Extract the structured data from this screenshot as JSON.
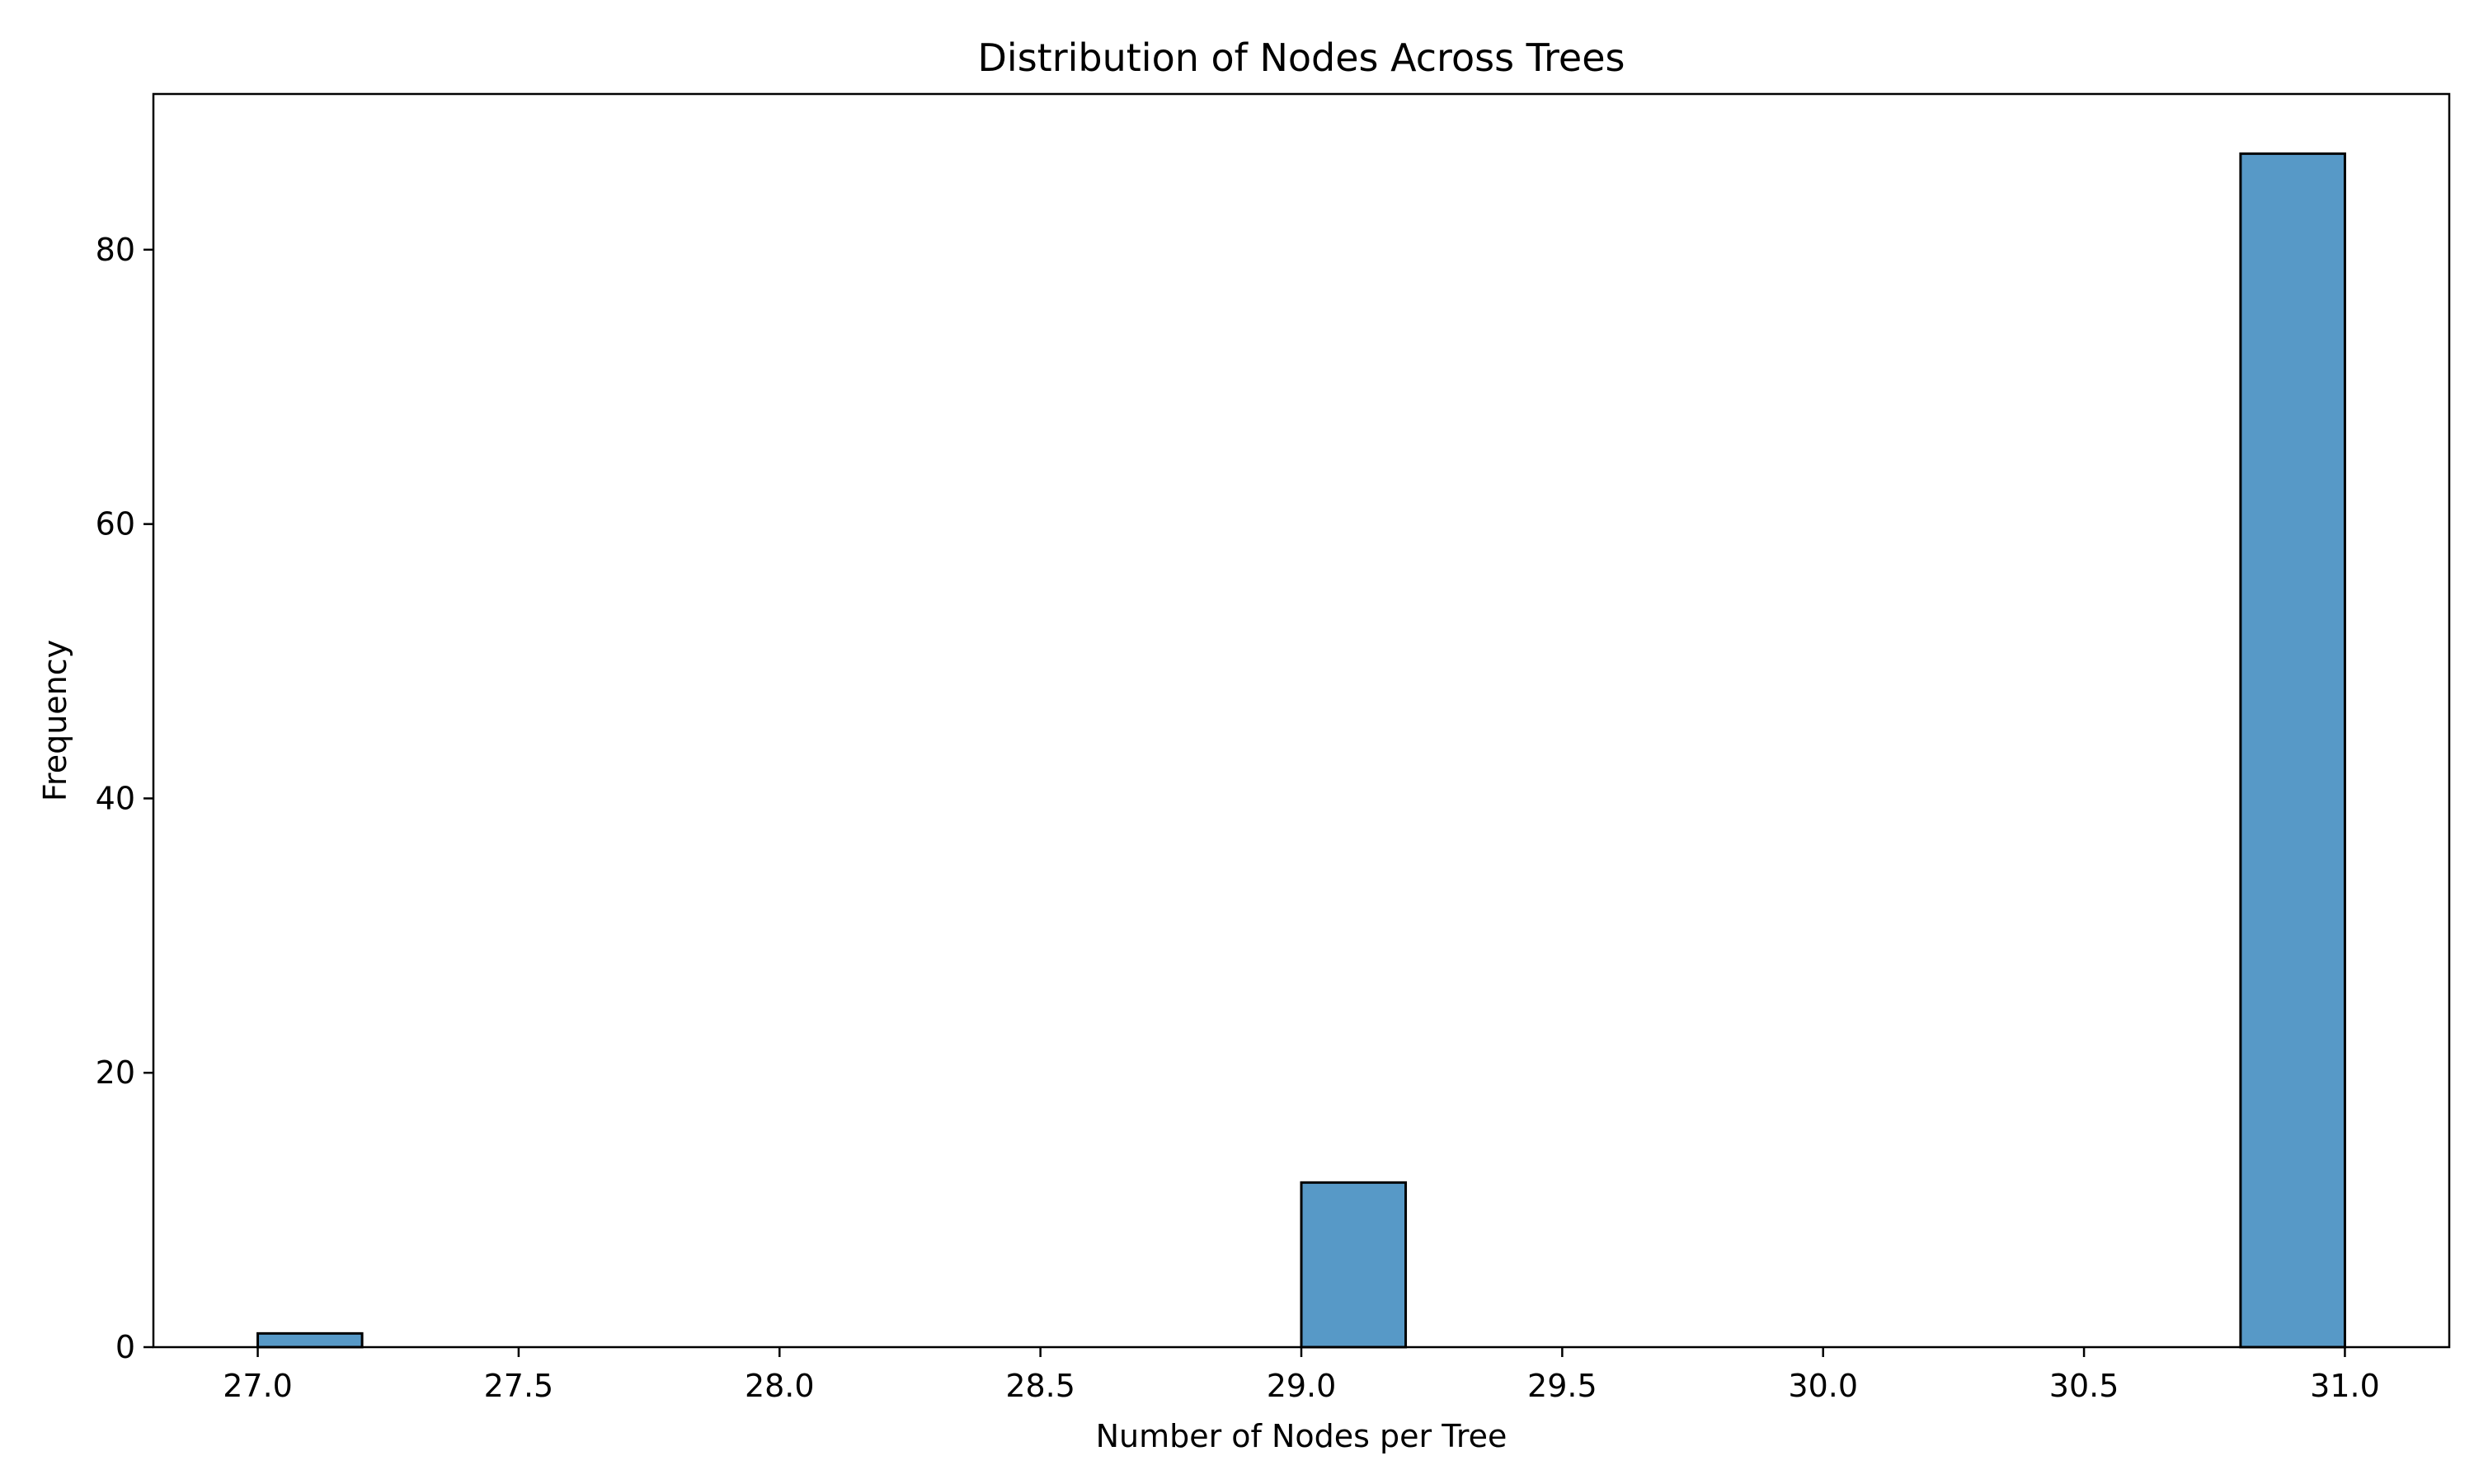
{
  "chart_data": {
    "type": "bar",
    "title": "Distribution of Nodes Across Trees",
    "xlabel": "Number of Nodes per Tree",
    "ylabel": "Frequency",
    "bin_width": 0.2,
    "bins": [
      {
        "start": 27.0,
        "end": 27.2,
        "count": 1
      },
      {
        "start": 27.2,
        "end": 27.4,
        "count": 0
      },
      {
        "start": 27.4,
        "end": 27.6,
        "count": 0
      },
      {
        "start": 27.6,
        "end": 27.8,
        "count": 0
      },
      {
        "start": 27.8,
        "end": 28.0,
        "count": 0
      },
      {
        "start": 28.0,
        "end": 28.2,
        "count": 0
      },
      {
        "start": 28.2,
        "end": 28.4,
        "count": 0
      },
      {
        "start": 28.4,
        "end": 28.6,
        "count": 0
      },
      {
        "start": 28.6,
        "end": 28.8,
        "count": 0
      },
      {
        "start": 28.8,
        "end": 29.0,
        "count": 0
      },
      {
        "start": 29.0,
        "end": 29.2,
        "count": 12
      },
      {
        "start": 29.2,
        "end": 29.4,
        "count": 0
      },
      {
        "start": 29.4,
        "end": 29.6,
        "count": 0
      },
      {
        "start": 29.6,
        "end": 29.8,
        "count": 0
      },
      {
        "start": 29.8,
        "end": 30.0,
        "count": 0
      },
      {
        "start": 30.0,
        "end": 30.2,
        "count": 0
      },
      {
        "start": 30.2,
        "end": 30.4,
        "count": 0
      },
      {
        "start": 30.4,
        "end": 30.6,
        "count": 0
      },
      {
        "start": 30.6,
        "end": 30.8,
        "count": 0
      },
      {
        "start": 30.8,
        "end": 31.0,
        "count": 87
      }
    ],
    "xlim": [
      26.8,
      31.2
    ],
    "ylim": [
      0,
      91.35
    ],
    "xticks": [
      27.0,
      27.5,
      28.0,
      28.5,
      29.0,
      29.5,
      30.0,
      30.5,
      31.0
    ],
    "xtick_labels": [
      "27.0",
      "27.5",
      "28.0",
      "28.5",
      "29.0",
      "29.5",
      "30.0",
      "30.5",
      "31.0"
    ],
    "yticks": [
      0,
      20,
      40,
      60,
      80
    ],
    "ytick_labels": [
      "0",
      "20",
      "40",
      "60",
      "80"
    ],
    "bar_color": "#5799c7",
    "edge_color": "#000000",
    "grid": false,
    "legend": "none"
  }
}
